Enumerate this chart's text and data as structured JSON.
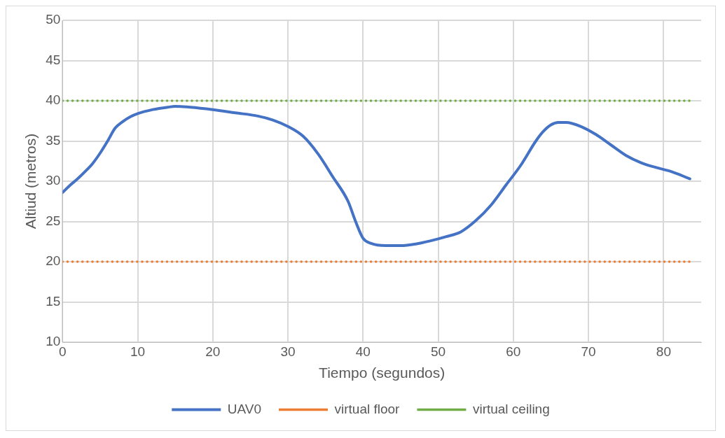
{
  "chart_data": {
    "type": "line",
    "xlabel": "Tiempo (segundos)",
    "ylabel": "Altiud (metros)",
    "xlim": [
      0,
      85
    ],
    "xticks": [
      0,
      10,
      20,
      30,
      40,
      50,
      60,
      70,
      80
    ],
    "ylim": [
      10,
      50
    ],
    "yticks": [
      10,
      15,
      20,
      25,
      30,
      35,
      40,
      45,
      50
    ],
    "grid": true,
    "legend": "bottom",
    "marker": "none",
    "series": [
      {
        "name": "UAV0",
        "color": "#4472c4",
        "line_style": "solid",
        "x": [
          0,
          1,
          2,
          3,
          4,
          5,
          6,
          7,
          8,
          9,
          10,
          12,
          14,
          15,
          17,
          20,
          23,
          26,
          28,
          30,
          32,
          34,
          36,
          38,
          39,
          40,
          41,
          43,
          45,
          47,
          49,
          51,
          53,
          55,
          57,
          59,
          61,
          63,
          64,
          65,
          66,
          67,
          69,
          71,
          73,
          75,
          77,
          79,
          81,
          83.5
        ],
        "values": [
          28.6,
          29.5,
          30.3,
          31.2,
          32.2,
          33.5,
          35,
          36.6,
          37.4,
          38,
          38.4,
          38.9,
          39.2,
          39.3,
          39.2,
          38.9,
          38.5,
          38.1,
          37.6,
          36.8,
          35.6,
          33.4,
          30.5,
          27.5,
          25,
          22.9,
          22.3,
          22,
          22,
          22.2,
          22.6,
          23.1,
          23.7,
          25.1,
          27,
          29.5,
          32,
          35,
          36.2,
          37,
          37.3,
          37.3,
          36.8,
          35.8,
          34.5,
          33.2,
          32.3,
          31.7,
          31.2,
          30.3
        ]
      },
      {
        "name": "virtual floor",
        "color": "#ed7d31",
        "line_style": "dotted",
        "x": [
          0,
          83.5
        ],
        "values": [
          20,
          20
        ]
      },
      {
        "name": "virtual ceiling",
        "color": "#70ad47",
        "line_style": "dotted",
        "x": [
          0,
          83.5
        ],
        "values": [
          40,
          40
        ]
      }
    ]
  }
}
